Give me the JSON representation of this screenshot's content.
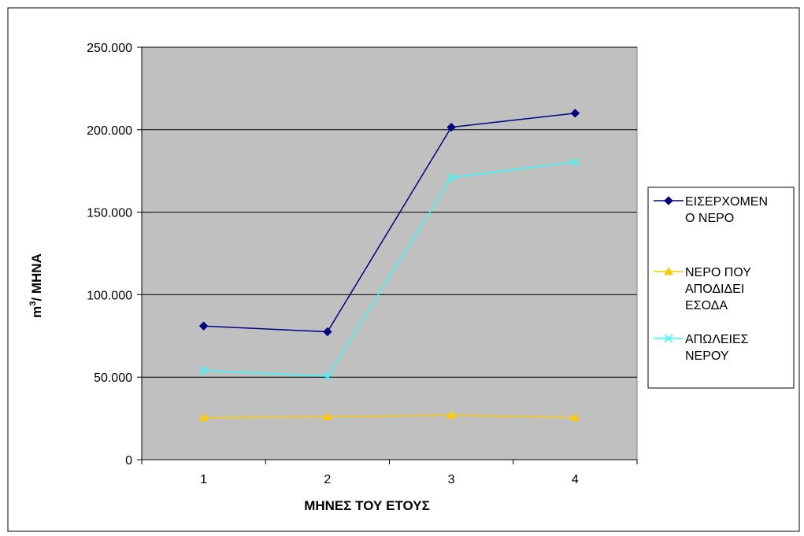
{
  "chart_data": {
    "type": "line",
    "x": [
      1,
      2,
      3,
      4
    ],
    "xlabel": "ΜΗΝΕΣ ΤΟΥ ΕΤΟΥΣ",
    "ylabel_base": "m",
    "ylabel_sup": "3",
    "ylabel_rest": "/ ΜΗΝΑ",
    "ylim": [
      0,
      250000
    ],
    "yticks": [
      0,
      50000,
      100000,
      150000,
      200000,
      250000
    ],
    "ytick_labels": [
      "0",
      "50.000",
      "100.000",
      "150.000",
      "200.000",
      "250.000"
    ],
    "xtick_labels": [
      "1",
      "2",
      "3",
      "4"
    ],
    "grid": true,
    "legend_position": "right",
    "colors": {
      "plot_background": "#c0c0c0",
      "gridline": "#000000"
    },
    "series": [
      {
        "name": "ΕΙΣΕΡΧΟΜΕΝΟ ΝΕΡΟ",
        "legend_lines": [
          "ΕΙΣΕΡΧΟΜΕΝ",
          "Ο ΝΕΡΟ"
        ],
        "marker": "diamond",
        "color": "#000080",
        "values": [
          81000,
          77500,
          201500,
          210000
        ]
      },
      {
        "name": "ΝΕΡΟ ΠΟΥ ΑΠΟΔΙΔΕΙ ΕΣΟΔΑ",
        "legend_lines": [
          "ΝΕΡΟ ΠΟΥ",
          "ΑΠΟΔΙΔΕΙ",
          "ΕΣΟΔΑ"
        ],
        "marker": "triangle",
        "color": "#ffcc00",
        "values": [
          25500,
          26000,
          27000,
          25500
        ]
      },
      {
        "name": "ΑΠΩΛΕΙΕΣ ΝΕΡΟΥ",
        "legend_lines": [
          "ΑΠΩΛΕΙΕΣ",
          "ΝΕΡΟΥ"
        ],
        "marker": "x",
        "color": "#33ffff",
        "values": [
          54000,
          50500,
          171000,
          180500
        ]
      }
    ]
  }
}
